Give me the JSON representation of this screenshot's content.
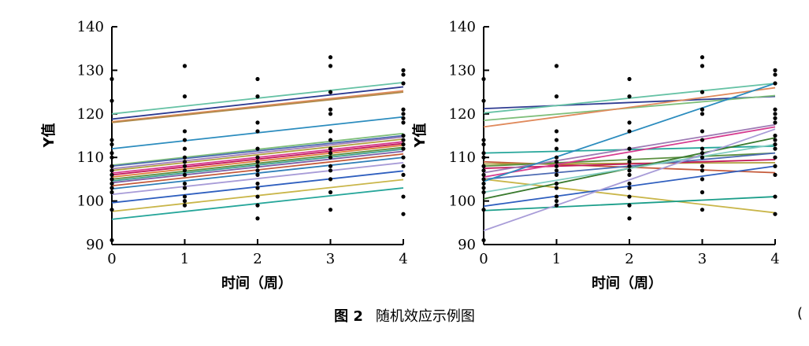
{
  "caption": {
    "number": "图 2",
    "text": "随机效应示例图"
  },
  "edge_mark": "(",
  "chart_data": [
    {
      "type": "line+scatter",
      "panel": "left",
      "title": "",
      "xlabel": "时间（周）",
      "ylabel": "Y值",
      "xlim": [
        0,
        4
      ],
      "ylim": [
        90,
        140
      ],
      "xticks": [
        0,
        1,
        2,
        3,
        4
      ],
      "yticks": [
        90,
        100,
        110,
        120,
        130,
        140
      ],
      "grid": false,
      "points": [
        {
          "x": 0,
          "y": 128
        },
        {
          "x": 0,
          "y": 123
        },
        {
          "x": 0,
          "y": 114
        },
        {
          "x": 0,
          "y": 113
        },
        {
          "x": 0,
          "y": 111
        },
        {
          "x": 0,
          "y": 110
        },
        {
          "x": 0,
          "y": 108
        },
        {
          "x": 0,
          "y": 107
        },
        {
          "x": 0,
          "y": 106
        },
        {
          "x": 0,
          "y": 105
        },
        {
          "x": 0,
          "y": 104
        },
        {
          "x": 0,
          "y": 103
        },
        {
          "x": 0,
          "y": 102
        },
        {
          "x": 0,
          "y": 98
        },
        {
          "x": 0,
          "y": 91
        },
        {
          "x": 1,
          "y": 131
        },
        {
          "x": 1,
          "y": 124
        },
        {
          "x": 1,
          "y": 116
        },
        {
          "x": 1,
          "y": 114
        },
        {
          "x": 1,
          "y": 112
        },
        {
          "x": 1,
          "y": 110
        },
        {
          "x": 1,
          "y": 109
        },
        {
          "x": 1,
          "y": 108
        },
        {
          "x": 1,
          "y": 107
        },
        {
          "x": 1,
          "y": 106
        },
        {
          "x": 1,
          "y": 104
        },
        {
          "x": 1,
          "y": 103
        },
        {
          "x": 1,
          "y": 101
        },
        {
          "x": 1,
          "y": 100
        },
        {
          "x": 1,
          "y": 99
        },
        {
          "x": 2,
          "y": 128
        },
        {
          "x": 2,
          "y": 124
        },
        {
          "x": 2,
          "y": 118
        },
        {
          "x": 2,
          "y": 116
        },
        {
          "x": 2,
          "y": 112
        },
        {
          "x": 2,
          "y": 110
        },
        {
          "x": 2,
          "y": 109
        },
        {
          "x": 2,
          "y": 108
        },
        {
          "x": 2,
          "y": 107
        },
        {
          "x": 2,
          "y": 106
        },
        {
          "x": 2,
          "y": 104
        },
        {
          "x": 2,
          "y": 103
        },
        {
          "x": 2,
          "y": 101
        },
        {
          "x": 2,
          "y": 99
        },
        {
          "x": 2,
          "y": 96
        },
        {
          "x": 3,
          "y": 133
        },
        {
          "x": 3,
          "y": 131
        },
        {
          "x": 3,
          "y": 125
        },
        {
          "x": 3,
          "y": 121
        },
        {
          "x": 3,
          "y": 120
        },
        {
          "x": 3,
          "y": 116
        },
        {
          "x": 3,
          "y": 114
        },
        {
          "x": 3,
          "y": 112
        },
        {
          "x": 3,
          "y": 111
        },
        {
          "x": 3,
          "y": 110
        },
        {
          "x": 3,
          "y": 108
        },
        {
          "x": 3,
          "y": 107
        },
        {
          "x": 3,
          "y": 105
        },
        {
          "x": 3,
          "y": 102
        },
        {
          "x": 3,
          "y": 98
        },
        {
          "x": 4,
          "y": 130
        },
        {
          "x": 4,
          "y": 129
        },
        {
          "x": 4,
          "y": 127
        },
        {
          "x": 4,
          "y": 121
        },
        {
          "x": 4,
          "y": 120
        },
        {
          "x": 4,
          "y": 119
        },
        {
          "x": 4,
          "y": 118
        },
        {
          "x": 4,
          "y": 115
        },
        {
          "x": 4,
          "y": 114
        },
        {
          "x": 4,
          "y": 113
        },
        {
          "x": 4,
          "y": 112
        },
        {
          "x": 4,
          "y": 110
        },
        {
          "x": 4,
          "y": 108
        },
        {
          "x": 4,
          "y": 106
        },
        {
          "x": 4,
          "y": 101
        },
        {
          "x": 4,
          "y": 97
        }
      ],
      "series": [
        {
          "color": "#66c2a5",
          "y0": 120,
          "y4": 127.2
        },
        {
          "color": "#2e3b91",
          "y0": 118.8,
          "y4": 126.2
        },
        {
          "color": "#e08a5c",
          "y0": 118.2,
          "y4": 125.3
        },
        {
          "color": "#b08a4a",
          "y0": 118.0,
          "y4": 125.0
        },
        {
          "color": "#2b8cbe",
          "y0": 112,
          "y4": 119.3
        },
        {
          "color": "#7fbf7b",
          "y0": 108.2,
          "y4": 115.5
        },
        {
          "color": "#4d6bb3",
          "y0": 108.0,
          "y4": 115.0
        },
        {
          "color": "#9e7bb5",
          "y0": 107.4,
          "y4": 114.7
        },
        {
          "color": "#b0a040",
          "y0": 107.0,
          "y4": 114.2
        },
        {
          "color": "#d63b8f",
          "y0": 106.4,
          "y4": 113.6
        },
        {
          "color": "#c2185b",
          "y0": 106.0,
          "y4": 113.2
        },
        {
          "color": "#e07b39",
          "y0": 105.5,
          "y4": 112.8
        },
        {
          "color": "#5b8f3f",
          "y0": 105.0,
          "y4": 112.3
        },
        {
          "color": "#3a9e8f",
          "y0": 104.6,
          "y4": 111.9
        },
        {
          "color": "#7b5ea7",
          "y0": 104.2,
          "y4": 111.4
        },
        {
          "color": "#c55a3a",
          "y0": 103.5,
          "y4": 110.8
        },
        {
          "color": "#2f7fb8",
          "y0": 102.8,
          "y4": 110.0
        },
        {
          "color": "#a89cd8",
          "y0": 101.5,
          "y4": 108.8
        },
        {
          "color": "#2f5fbf",
          "y0": 99.6,
          "y4": 106.9
        },
        {
          "color": "#c9b64a",
          "y0": 97.6,
          "y4": 104.9
        },
        {
          "color": "#26a69a",
          "y0": 95.8,
          "y4": 103.0
        }
      ]
    },
    {
      "type": "line+scatter",
      "panel": "right",
      "title": "",
      "xlabel": "时间（周）",
      "ylabel": "Y值",
      "xlim": [
        0,
        4
      ],
      "ylim": [
        90,
        140
      ],
      "xticks": [
        0,
        1,
        2,
        3,
        4
      ],
      "yticks": [
        90,
        100,
        110,
        120,
        130,
        140
      ],
      "grid": false,
      "points": [
        {
          "x": 0,
          "y": 128
        },
        {
          "x": 0,
          "y": 123
        },
        {
          "x": 0,
          "y": 114
        },
        {
          "x": 0,
          "y": 113
        },
        {
          "x": 0,
          "y": 111
        },
        {
          "x": 0,
          "y": 110
        },
        {
          "x": 0,
          "y": 108
        },
        {
          "x": 0,
          "y": 107
        },
        {
          "x": 0,
          "y": 106
        },
        {
          "x": 0,
          "y": 105
        },
        {
          "x": 0,
          "y": 104
        },
        {
          "x": 0,
          "y": 103
        },
        {
          "x": 0,
          "y": 102
        },
        {
          "x": 0,
          "y": 98
        },
        {
          "x": 0,
          "y": 91
        },
        {
          "x": 1,
          "y": 131
        },
        {
          "x": 1,
          "y": 124
        },
        {
          "x": 1,
          "y": 116
        },
        {
          "x": 1,
          "y": 114
        },
        {
          "x": 1,
          "y": 112
        },
        {
          "x": 1,
          "y": 110
        },
        {
          "x": 1,
          "y": 109
        },
        {
          "x": 1,
          "y": 108
        },
        {
          "x": 1,
          "y": 107
        },
        {
          "x": 1,
          "y": 106
        },
        {
          "x": 1,
          "y": 104
        },
        {
          "x": 1,
          "y": 103
        },
        {
          "x": 1,
          "y": 101
        },
        {
          "x": 1,
          "y": 100
        },
        {
          "x": 1,
          "y": 99
        },
        {
          "x": 2,
          "y": 128
        },
        {
          "x": 2,
          "y": 124
        },
        {
          "x": 2,
          "y": 118
        },
        {
          "x": 2,
          "y": 116
        },
        {
          "x": 2,
          "y": 112
        },
        {
          "x": 2,
          "y": 110
        },
        {
          "x": 2,
          "y": 109
        },
        {
          "x": 2,
          "y": 108
        },
        {
          "x": 2,
          "y": 107
        },
        {
          "x": 2,
          "y": 106
        },
        {
          "x": 2,
          "y": 104
        },
        {
          "x": 2,
          "y": 103
        },
        {
          "x": 2,
          "y": 101
        },
        {
          "x": 2,
          "y": 99
        },
        {
          "x": 2,
          "y": 96
        },
        {
          "x": 3,
          "y": 133
        },
        {
          "x": 3,
          "y": 131
        },
        {
          "x": 3,
          "y": 125
        },
        {
          "x": 3,
          "y": 121
        },
        {
          "x": 3,
          "y": 120
        },
        {
          "x": 3,
          "y": 116
        },
        {
          "x": 3,
          "y": 114
        },
        {
          "x": 3,
          "y": 112
        },
        {
          "x": 3,
          "y": 111
        },
        {
          "x": 3,
          "y": 110
        },
        {
          "x": 3,
          "y": 108
        },
        {
          "x": 3,
          "y": 107
        },
        {
          "x": 3,
          "y": 105
        },
        {
          "x": 3,
          "y": 102
        },
        {
          "x": 3,
          "y": 98
        },
        {
          "x": 4,
          "y": 130
        },
        {
          "x": 4,
          "y": 129
        },
        {
          "x": 4,
          "y": 127
        },
        {
          "x": 4,
          "y": 121
        },
        {
          "x": 4,
          "y": 120
        },
        {
          "x": 4,
          "y": 119
        },
        {
          "x": 4,
          "y": 118
        },
        {
          "x": 4,
          "y": 115
        },
        {
          "x": 4,
          "y": 114
        },
        {
          "x": 4,
          "y": 113
        },
        {
          "x": 4,
          "y": 112
        },
        {
          "x": 4,
          "y": 110
        },
        {
          "x": 4,
          "y": 108
        },
        {
          "x": 4,
          "y": 106
        },
        {
          "x": 4,
          "y": 101
        },
        {
          "x": 4,
          "y": 97
        }
      ],
      "series": [
        {
          "color": "#2e3b91",
          "y0": 121.2,
          "y4": 124.0
        },
        {
          "color": "#66c2a5",
          "y0": 120.2,
          "y4": 127.0
        },
        {
          "color": "#7fbf7b",
          "y0": 118.5,
          "y4": 124.2
        },
        {
          "color": "#e08a5c",
          "y0": 117.0,
          "y4": 126.0
        },
        {
          "color": "#26a69a",
          "y0": 111.0,
          "y4": 112.6
        },
        {
          "color": "#c55a3a",
          "y0": 109.0,
          "y4": 106.5
        },
        {
          "color": "#b0a040",
          "y0": 108.5,
          "y4": 108.8
        },
        {
          "color": "#5b8f3f",
          "y0": 108.0,
          "y4": 111.0
        },
        {
          "color": "#c2185b",
          "y0": 107.5,
          "y4": 109.5
        },
        {
          "color": "#9e7bb5",
          "y0": 106.5,
          "y4": 117.5
        },
        {
          "color": "#d63b8f",
          "y0": 105.5,
          "y4": 117.0
        },
        {
          "color": "#4d6bb3",
          "y0": 105.0,
          "y4": 111.0
        },
        {
          "color": "#c9b64a",
          "y0": 105.0,
          "y4": 97.3
        },
        {
          "color": "#2b8cbe",
          "y0": 104.5,
          "y4": 127.0
        },
        {
          "color": "#3a7a2e",
          "y0": 100.5,
          "y4": 114.5
        },
        {
          "color": "#80cdc1",
          "y0": 102.0,
          "y4": 113.0
        },
        {
          "color": "#2f5fbf",
          "y0": 98.8,
          "y4": 108.0
        },
        {
          "color": "#1b9e8a",
          "y0": 97.8,
          "y4": 101.0
        },
        {
          "color": "#a89cd8",
          "y0": 93.2,
          "y4": 116.5
        }
      ]
    }
  ]
}
